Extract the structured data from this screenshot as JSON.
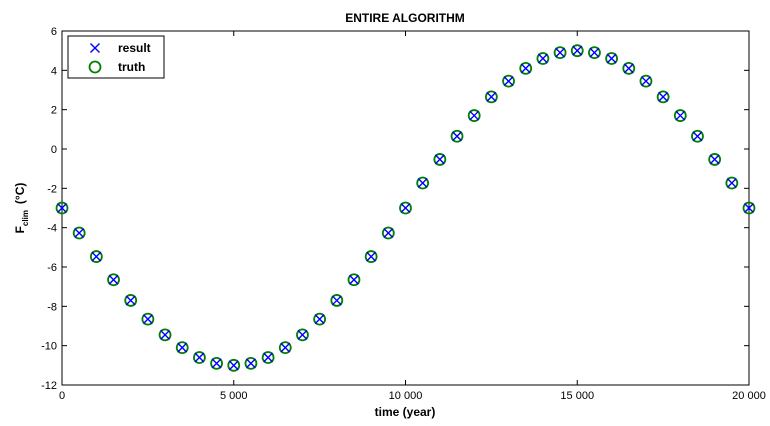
{
  "chart_data": {
    "type": "scatter",
    "title": "ENTIRE ALGORITHM",
    "xlabel": "time (year)",
    "ylabel": {
      "main": "F",
      "sub": "clim",
      "unit": "(°C)"
    },
    "xlim": [
      0,
      20000
    ],
    "ylim": [
      -12,
      6
    ],
    "xticks": [
      0,
      5000,
      10000,
      15000,
      20000
    ],
    "xtick_labels": [
      "0",
      "5 000",
      "10 000",
      "15 000",
      "20 000"
    ],
    "yticks": [
      -12,
      -10,
      -8,
      -6,
      -4,
      -2,
      0,
      2,
      4,
      6
    ],
    "ytick_labels": [
      "-12",
      "-10",
      "-8",
      "-6",
      "-4",
      "-2",
      "0",
      "2",
      "4",
      "6"
    ],
    "grid": false,
    "legend_position": "top-left",
    "x": [
      0,
      500,
      1000,
      1500,
      2000,
      2500,
      3000,
      3500,
      4000,
      4500,
      5000,
      5500,
      6000,
      6500,
      7000,
      7500,
      8000,
      8500,
      9000,
      9500,
      10000,
      10500,
      11000,
      11500,
      12000,
      12500,
      13000,
      13500,
      14000,
      14500,
      15000,
      15500,
      16000,
      16500,
      17000,
      17500,
      18000,
      18500,
      19000,
      19500,
      20000
    ],
    "series": [
      {
        "name": "result",
        "marker": "x",
        "color": "#0000ff",
        "values": [
          -3.0,
          -4.27,
          -5.47,
          -6.65,
          -7.7,
          -8.65,
          -9.45,
          -10.1,
          -10.6,
          -10.9,
          -11.0,
          -10.9,
          -10.6,
          -10.1,
          -9.45,
          -8.65,
          -7.7,
          -6.65,
          -5.47,
          -4.27,
          -3.0,
          -1.73,
          -0.53,
          0.65,
          1.7,
          2.65,
          3.45,
          4.1,
          4.6,
          4.9,
          5.0,
          4.9,
          4.6,
          4.1,
          3.45,
          2.65,
          1.7,
          0.65,
          -0.53,
          -1.73,
          -3.0
        ]
      },
      {
        "name": "truth",
        "marker": "o",
        "color": "#008000",
        "values": [
          -3.0,
          -4.27,
          -5.47,
          -6.65,
          -7.7,
          -8.65,
          -9.45,
          -10.1,
          -10.6,
          -10.9,
          -11.0,
          -10.9,
          -10.6,
          -10.1,
          -9.45,
          -8.65,
          -7.7,
          -6.65,
          -5.47,
          -4.27,
          -3.0,
          -1.73,
          -0.53,
          0.65,
          1.7,
          2.65,
          3.45,
          4.1,
          4.6,
          4.9,
          5.0,
          4.9,
          4.6,
          4.1,
          3.45,
          2.65,
          1.7,
          0.65,
          -0.53,
          -1.73,
          -3.0
        ]
      }
    ]
  }
}
